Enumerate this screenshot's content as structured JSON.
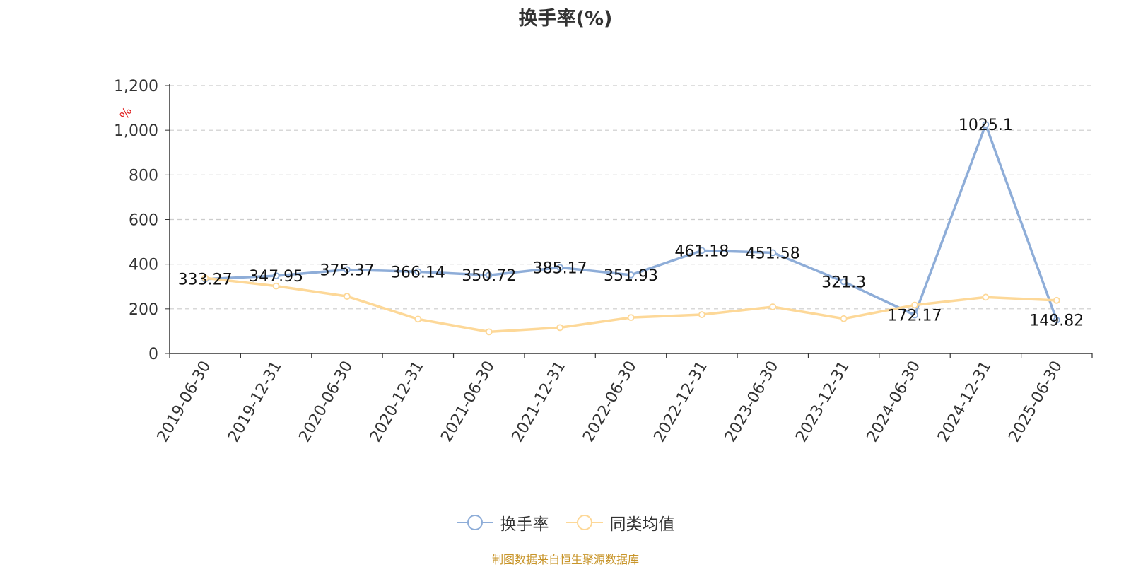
{
  "chart_data": {
    "type": "line",
    "title": "换手率(%)",
    "ylabel": "%",
    "ylim": [
      0,
      1200
    ],
    "yticks": [
      0,
      200,
      400,
      600,
      800,
      1000,
      1200
    ],
    "ytick_labels": [
      "0",
      "200",
      "400",
      "600",
      "800",
      "1,000",
      "1,200"
    ],
    "grid": true,
    "legend_position": "bottom",
    "categories": [
      "2019-06-30",
      "2019-12-31",
      "2020-06-30",
      "2020-12-31",
      "2021-06-30",
      "2021-12-31",
      "2022-06-30",
      "2022-12-31",
      "2023-06-30",
      "2023-12-31",
      "2024-06-30",
      "2024-12-31",
      "2025-06-30"
    ],
    "series": [
      {
        "name": "换手率",
        "color": "#8eadd8",
        "values": [
          333.27,
          347.95,
          375.37,
          366.14,
          350.72,
          385.17,
          351.93,
          461.18,
          451.58,
          321.3,
          172.17,
          1025.1,
          149.82
        ],
        "value_labels": [
          "333.27",
          "347.95",
          "375.37",
          "366.14",
          "350.72",
          "385.17",
          "351.93",
          "461.18",
          "451.58",
          "321.3",
          "172.17",
          "1025.1",
          "149.82"
        ]
      },
      {
        "name": "同类均值",
        "color": "#fdd898",
        "values": [
          338,
          302,
          256,
          154,
          97,
          116,
          161,
          174,
          209,
          156,
          217,
          252,
          238
        ]
      }
    ]
  },
  "footer": "制图数据来自恒生聚源数据库"
}
